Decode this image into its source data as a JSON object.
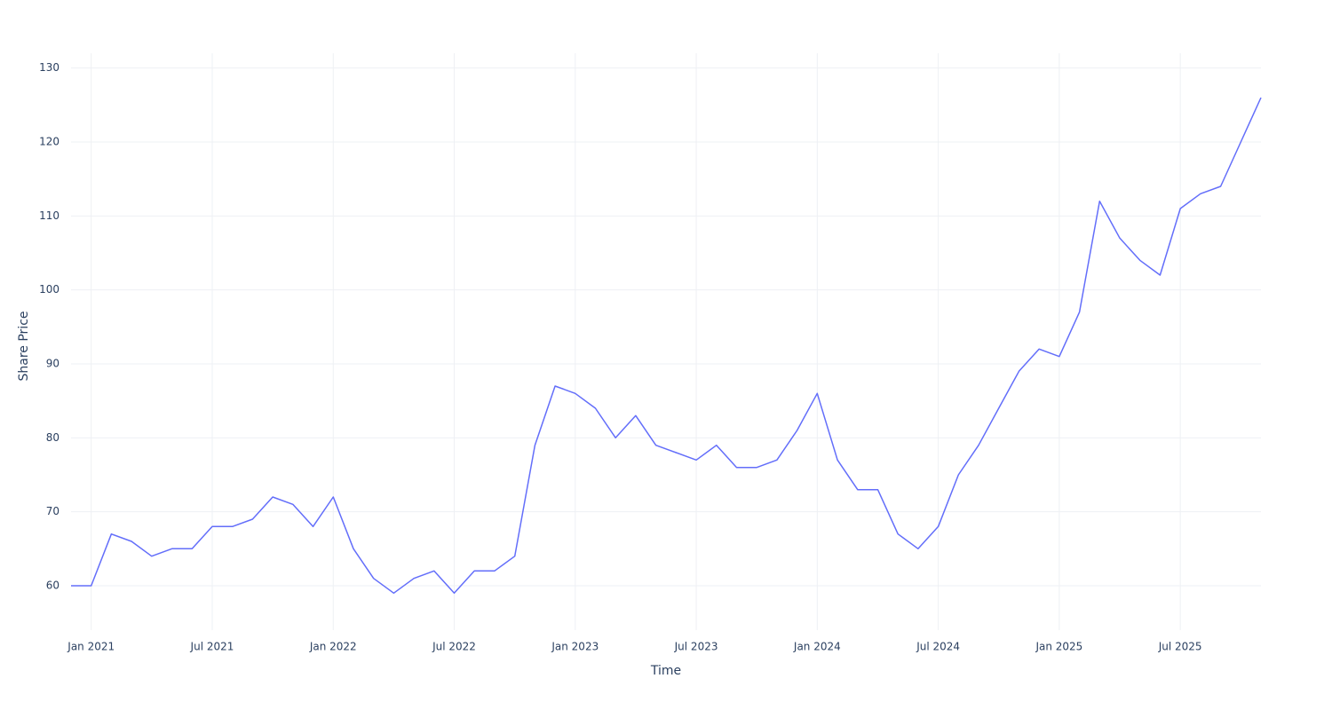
{
  "chart_data": {
    "type": "line",
    "x_label": "Time",
    "y_label": "Share Price",
    "x": [
      "2020-12",
      "2021-01",
      "2021-02",
      "2021-03",
      "2021-04",
      "2021-05",
      "2021-06",
      "2021-07",
      "2021-08",
      "2021-09",
      "2021-10",
      "2021-11",
      "2021-12",
      "2022-01",
      "2022-02",
      "2022-03",
      "2022-04",
      "2022-05",
      "2022-06",
      "2022-07",
      "2022-08",
      "2022-09",
      "2022-10",
      "2022-11",
      "2022-12",
      "2023-01",
      "2023-02",
      "2023-03",
      "2023-04",
      "2023-05",
      "2023-06",
      "2023-07",
      "2023-08",
      "2023-09",
      "2023-10",
      "2023-11",
      "2023-12",
      "2024-01",
      "2024-02",
      "2024-03",
      "2024-04",
      "2024-05",
      "2024-06",
      "2024-07",
      "2024-08",
      "2024-09",
      "2024-10",
      "2024-11",
      "2024-12",
      "2025-01",
      "2025-02",
      "2025-03",
      "2025-04",
      "2025-05",
      "2025-06",
      "2025-07",
      "2025-08",
      "2025-09",
      "2025-10",
      "2025-11"
    ],
    "series": [
      {
        "color": "#636efa",
        "values": [
          60,
          60,
          67,
          66,
          64,
          65,
          65,
          68,
          68,
          69,
          72,
          71,
          68,
          72,
          65,
          61,
          59,
          61,
          62,
          59,
          62,
          62,
          64,
          79,
          87,
          86,
          84,
          80,
          83,
          79,
          78,
          77,
          79,
          76,
          76,
          77,
          81,
          86,
          77,
          73,
          73,
          67,
          65,
          68,
          75,
          79,
          84,
          89,
          92,
          91,
          97,
          112,
          107,
          104,
          102,
          111,
          113,
          114,
          120,
          126
        ]
      }
    ],
    "xlim": [
      "2020-12",
      "2025-11"
    ],
    "xticks": [
      {
        "value": "2021-01",
        "label": "Jan 2021"
      },
      {
        "value": "2021-07",
        "label": "Jul 2021"
      },
      {
        "value": "2022-01",
        "label": "Jan 2022"
      },
      {
        "value": "2022-07",
        "label": "Jul 2022"
      },
      {
        "value": "2023-01",
        "label": "Jan 2023"
      },
      {
        "value": "2023-07",
        "label": "Jul 2023"
      },
      {
        "value": "2024-01",
        "label": "Jan 2024"
      },
      {
        "value": "2024-07",
        "label": "Jul 2024"
      },
      {
        "value": "2025-01",
        "label": "Jan 2025"
      },
      {
        "value": "2025-07",
        "label": "Jul 2025"
      }
    ],
    "ylim": [
      54,
      132
    ],
    "yticks": [
      60,
      70,
      80,
      90,
      100,
      110,
      120,
      130
    ],
    "grid": true
  }
}
